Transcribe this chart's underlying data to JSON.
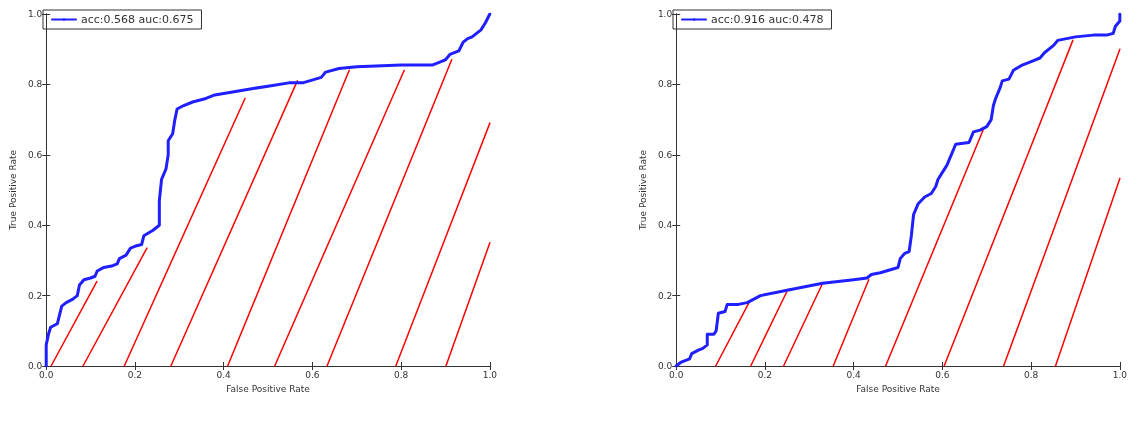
{
  "chart_data": [
    {
      "type": "line",
      "xlabel": "False Positive Rate",
      "ylabel": "True Positive Rate",
      "xlim": [
        0,
        1
      ],
      "ylim": [
        0,
        1
      ],
      "xticks": [
        {
          "value": 0,
          "label": "0.0"
        },
        {
          "value": 0.2,
          "label": "0.2"
        },
        {
          "value": 0.4,
          "label": "0.4"
        },
        {
          "value": 0.6,
          "label": "0.6"
        },
        {
          "value": 0.8,
          "label": "0.8"
        },
        {
          "value": 1,
          "label": "1.0"
        }
      ],
      "yticks": [
        {
          "value": 0,
          "label": "0.0"
        },
        {
          "value": 0.2,
          "label": "0.2"
        },
        {
          "value": 0.4,
          "label": "0.4"
        },
        {
          "value": 0.6,
          "label": "0.6"
        },
        {
          "value": 0.8,
          "label": "0.8"
        },
        {
          "value": 1,
          "label": "1.0"
        }
      ],
      "grid": false,
      "legend": "top left",
      "line_style": "solid",
      "series": [
        {
          "name": "acc:0.568 auc:0.675",
          "color": "#1f1fff",
          "x": [
            0,
            0,
            0.005,
            0.01,
            0.025,
            0.035,
            0.045,
            0.06,
            0.07,
            0.075,
            0.085,
            0.1,
            0.11,
            0.115,
            0.13,
            0.15,
            0.16,
            0.165,
            0.18,
            0.19,
            0.2,
            0.215,
            0.22,
            0.24,
            0.25,
            0.255,
            0.255,
            0.26,
            0.27,
            0.275,
            0.275,
            0.285,
            0.29,
            0.295,
            0.31,
            0.33,
            0.36,
            0.38,
            0.45,
            0.5,
            0.55,
            0.58,
            0.62,
            0.63,
            0.66,
            0.7,
            0.8,
            0.87,
            0.89,
            0.9,
            0.91,
            0.93,
            0.94,
            0.95,
            0.96,
            0.97,
            0.98,
            0.99,
            1
          ],
          "values": [
            0,
            0.06,
            0.09,
            0.11,
            0.12,
            0.17,
            0.18,
            0.19,
            0.2,
            0.23,
            0.245,
            0.25,
            0.255,
            0.27,
            0.28,
            0.285,
            0.29,
            0.305,
            0.315,
            0.335,
            0.34,
            0.345,
            0.37,
            0.385,
            0.395,
            0.4,
            0.47,
            0.53,
            0.56,
            0.6,
            0.64,
            0.66,
            0.7,
            0.73,
            0.74,
            0.75,
            0.76,
            0.77,
            0.785,
            0.795,
            0.805,
            0.805,
            0.82,
            0.835,
            0.845,
            0.85,
            0.855,
            0.855,
            0.865,
            0.87,
            0.885,
            0.895,
            0.92,
            0.93,
            0.935,
            0.945,
            0.955,
            0.975,
            1
          ]
        },
        {
          "color": "#ff0000",
          "x": [
            0.011,
            0.114
          ],
          "values": [
            0,
            0.24
          ]
        },
        {
          "color": "#ff0000",
          "x": [
            0.083,
            0.227
          ],
          "values": [
            0,
            0.335
          ]
        },
        {
          "color": "#ff0000",
          "x": [
            0.176,
            0.448
          ],
          "values": [
            0,
            0.76
          ]
        },
        {
          "color": "#ff0000",
          "x": [
            0.281,
            0.566
          ],
          "values": [
            0,
            0.81
          ]
        },
        {
          "color": "#ff0000",
          "x": [
            0.409,
            0.683
          ],
          "values": [
            0,
            0.84
          ]
        },
        {
          "color": "#ff0000",
          "x": [
            0.515,
            0.807
          ],
          "values": [
            0,
            0.84
          ]
        },
        {
          "color": "#ff0000",
          "x": [
            0.633,
            0.914
          ],
          "values": [
            0,
            0.87
          ]
        },
        {
          "color": "#ff0000",
          "x": [
            0.788,
            1
          ],
          "values": [
            0,
            0.69
          ]
        },
        {
          "color": "#ff0000",
          "x": [
            0.901,
            1
          ],
          "values": [
            0,
            0.35
          ]
        }
      ]
    },
    {
      "type": "line",
      "xlabel": "False Positive Rate",
      "ylabel": "True Positive Rate",
      "xlim": [
        0,
        1
      ],
      "ylim": [
        0,
        1
      ],
      "xticks": [
        {
          "value": 0,
          "label": "0.0"
        },
        {
          "value": 0.2,
          "label": "0.2"
        },
        {
          "value": 0.4,
          "label": "0.4"
        },
        {
          "value": 0.6,
          "label": "0.6"
        },
        {
          "value": 0.8,
          "label": "0.8"
        },
        {
          "value": 1,
          "label": "1.0"
        }
      ],
      "yticks": [
        {
          "value": 0,
          "label": "0.0"
        },
        {
          "value": 0.2,
          "label": "0.2"
        },
        {
          "value": 0.4,
          "label": "0.4"
        },
        {
          "value": 0.6,
          "label": "0.6"
        },
        {
          "value": 0.8,
          "label": "0.8"
        },
        {
          "value": 1,
          "label": "1.0"
        }
      ],
      "grid": false,
      "legend": "top left",
      "line_style": "solid",
      "series": [
        {
          "name": "acc:0.916 auc:0.478",
          "color": "#1f1fff",
          "x": [
            0,
            0.01,
            0.03,
            0.035,
            0.05,
            0.06,
            0.07,
            0.07,
            0.085,
            0.09,
            0.095,
            0.11,
            0.115,
            0.14,
            0.16,
            0.19,
            0.25,
            0.33,
            0.4,
            0.43,
            0.44,
            0.46,
            0.5,
            0.505,
            0.515,
            0.525,
            0.53,
            0.535,
            0.545,
            0.56,
            0.575,
            0.585,
            0.59,
            0.6,
            0.61,
            0.62,
            0.63,
            0.66,
            0.67,
            0.685,
            0.7,
            0.71,
            0.715,
            0.72,
            0.73,
            0.735,
            0.75,
            0.76,
            0.78,
            0.8,
            0.82,
            0.83,
            0.85,
            0.86,
            0.9,
            0.94,
            0.97,
            0.985,
            0.99,
            1,
            1
          ],
          "values": [
            0,
            0.01,
            0.02,
            0.035,
            0.045,
            0.05,
            0.06,
            0.09,
            0.09,
            0.1,
            0.15,
            0.155,
            0.175,
            0.175,
            0.18,
            0.2,
            0.215,
            0.235,
            0.245,
            0.25,
            0.26,
            0.265,
            0.28,
            0.305,
            0.32,
            0.325,
            0.37,
            0.43,
            0.46,
            0.48,
            0.49,
            0.51,
            0.53,
            0.55,
            0.57,
            0.6,
            0.63,
            0.635,
            0.665,
            0.67,
            0.68,
            0.7,
            0.74,
            0.76,
            0.79,
            0.81,
            0.815,
            0.84,
            0.855,
            0.865,
            0.875,
            0.89,
            0.91,
            0.925,
            0.935,
            0.94,
            0.94,
            0.945,
            0.965,
            0.98,
            1
          ]
        },
        {
          "color": "#ff0000",
          "x": [
            0.089,
            0.164
          ],
          "values": [
            0,
            0.18
          ]
        },
        {
          "color": "#ff0000",
          "x": [
            0.168,
            0.252
          ],
          "values": [
            0,
            0.218
          ]
        },
        {
          "color": "#ff0000",
          "x": [
            0.242,
            0.33
          ],
          "values": [
            0,
            0.235
          ]
        },
        {
          "color": "#ff0000",
          "x": [
            0.354,
            0.434
          ],
          "values": [
            0,
            0.245
          ]
        },
        {
          "color": "#ff0000",
          "x": [
            0.472,
            0.693
          ],
          "values": [
            0,
            0.674
          ]
        },
        {
          "color": "#ff0000",
          "x": [
            0.604,
            0.894
          ],
          "values": [
            0,
            0.925
          ]
        },
        {
          "color": "#ff0000",
          "x": [
            0.738,
            1
          ],
          "values": [
            0,
            0.9
          ]
        },
        {
          "color": "#ff0000",
          "x": [
            0.855,
            1
          ],
          "values": [
            0,
            0.533
          ]
        }
      ]
    }
  ]
}
